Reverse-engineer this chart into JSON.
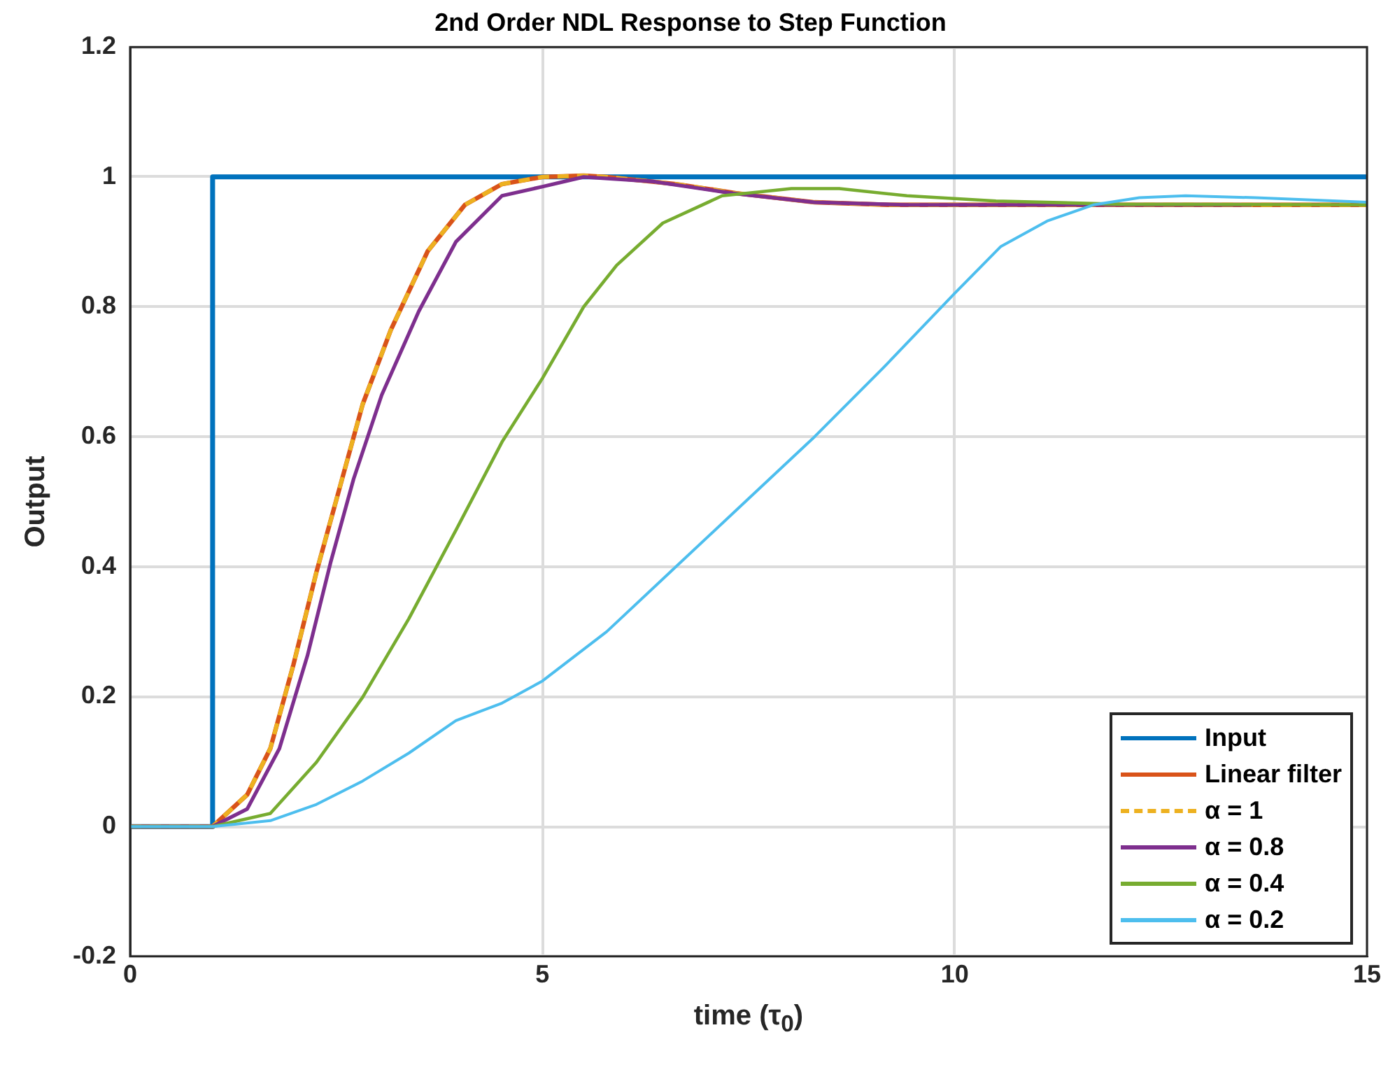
{
  "chart_data": {
    "type": "line",
    "title": "2nd Order NDL Response to Step Function",
    "xlabel": "time (τ$_{0}$)",
    "ylabel": "Output",
    "xlim": [
      0,
      15
    ],
    "xticks": [
      0,
      5,
      10,
      15
    ],
    "ylim": [
      -0.2,
      1.2
    ],
    "yticks": [
      -0.2,
      0,
      0.2,
      0.4,
      0.6,
      0.8,
      1,
      1.2
    ],
    "grid": true,
    "legend": "bottom right",
    "marker": "none",
    "series": [
      {
        "name": "Input",
        "color": "#0072bd",
        "x": [
          0,
          1,
          1,
          15
        ],
        "values": [
          0,
          0,
          1,
          1
        ]
      },
      {
        "name": "Linear filter",
        "color": "#d95319",
        "x": [
          0,
          1,
          1.42,
          1.7,
          1.98,
          2.26,
          2.54,
          2.82,
          3.16,
          3.61,
          4.06,
          4.51,
          5,
          5.5,
          5.78,
          6.62,
          7.35,
          8.3,
          9.2,
          15
        ],
        "values": [
          0,
          0,
          0.049,
          0.12,
          0.249,
          0.392,
          0.521,
          0.65,
          0.764,
          0.886,
          0.957,
          0.989,
          1,
          1.002,
          1,
          0.989,
          0.975,
          0.961,
          0.957,
          0.957
        ]
      },
      {
        "name": "α = 1",
        "color": "#edb120",
        "line_style": "dashed",
        "x": [
          0,
          1,
          1.42,
          1.7,
          1.98,
          2.26,
          2.54,
          2.82,
          3.16,
          3.61,
          4.06,
          4.51,
          5,
          5.5,
          5.78,
          6.62,
          7.35,
          8.3,
          9.2,
          15
        ],
        "values": [
          0,
          0,
          0.049,
          0.12,
          0.249,
          0.392,
          0.521,
          0.65,
          0.764,
          0.886,
          0.957,
          0.989,
          1,
          1.002,
          1,
          0.989,
          0.975,
          0.961,
          0.957,
          0.957
        ]
      },
      {
        "name": "α = 0.8",
        "color": "#7e2f8e",
        "x": [
          0,
          1,
          1.42,
          1.81,
          2.15,
          2.43,
          2.71,
          3.05,
          3.5,
          3.95,
          4.51,
          5,
          5.5,
          6.34,
          7.3,
          8.3,
          9.4,
          13.6
        ],
        "values": [
          0,
          0,
          0.027,
          0.12,
          0.263,
          0.406,
          0.535,
          0.664,
          0.793,
          0.9,
          0.971,
          0.985,
          1,
          0.993,
          0.975,
          0.961,
          0.957,
          0.957
        ]
      },
      {
        "name": "α = 0.4",
        "color": "#77ac30",
        "x": [
          0,
          1,
          1.7,
          2.26,
          2.82,
          3.38,
          3.95,
          4.51,
          5,
          5.5,
          5.9,
          6.46,
          7.18,
          8.02,
          8.6,
          9.42,
          10.5,
          12,
          15
        ],
        "values": [
          0,
          0,
          0.02,
          0.099,
          0.199,
          0.32,
          0.456,
          0.592,
          0.69,
          0.8,
          0.864,
          0.929,
          0.971,
          0.982,
          0.982,
          0.971,
          0.963,
          0.958,
          0.957
        ]
      },
      {
        "name": "α = 0.2",
        "color": "#4dbeee",
        "x": [
          0,
          1,
          1.7,
          2.26,
          2.82,
          3.38,
          3.95,
          4.51,
          5,
          5.78,
          6.62,
          7.46,
          8.3,
          9.14,
          10,
          10.56,
          11.12,
          11.68,
          12.24,
          12.8,
          13.65,
          15
        ],
        "values": [
          0,
          0,
          0.009,
          0.034,
          0.07,
          0.113,
          0.163,
          0.19,
          0.224,
          0.3,
          0.4,
          0.5,
          0.6,
          0.707,
          0.821,
          0.893,
          0.932,
          0.957,
          0.968,
          0.971,
          0.968,
          0.961
        ]
      }
    ]
  }
}
